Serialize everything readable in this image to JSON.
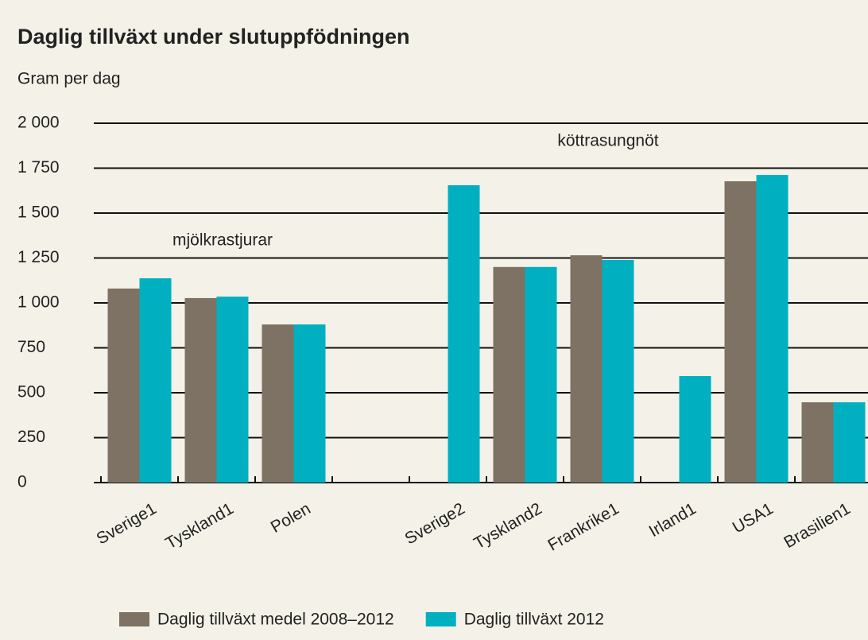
{
  "chart_data": {
    "type": "bar",
    "title": "Daglig tillväxt under slutuppfödningen",
    "subtitle": "Gram per dag",
    "annotations": [
      "mjölkrastjurar",
      "köttrasungnöt"
    ],
    "categories": [
      "Sverige1",
      "Tyskland1",
      "Polen",
      null,
      "Sverige2",
      "Tyskland2",
      "Frankrike1",
      "Irland1",
      "USA1",
      "Brasilien1"
    ],
    "series": [
      {
        "name": "Daglig tillväxt medel 2008–2012",
        "color": "#7d7263",
        "values": [
          1080,
          1027,
          880,
          null,
          null,
          1200,
          1265,
          null,
          1677,
          447
        ]
      },
      {
        "name": "Daglig tillväxt 2012",
        "color": "#00b0c0",
        "values": [
          1137,
          1035,
          880,
          null,
          1655,
          1200,
          1239,
          593,
          1712,
          447
        ]
      }
    ],
    "ylim": [
      0,
      2000
    ],
    "yticks": [
      0,
      250,
      500,
      750,
      {
        "value": 1000,
        "label": "1 000"
      },
      {
        "value": 1250,
        "label": "1 250"
      },
      {
        "value": 1500,
        "label": "1 500"
      },
      {
        "value": 1750,
        "label": "1 750"
      },
      {
        "value": 2000,
        "label": "2 000"
      }
    ],
    "grid": true
  }
}
